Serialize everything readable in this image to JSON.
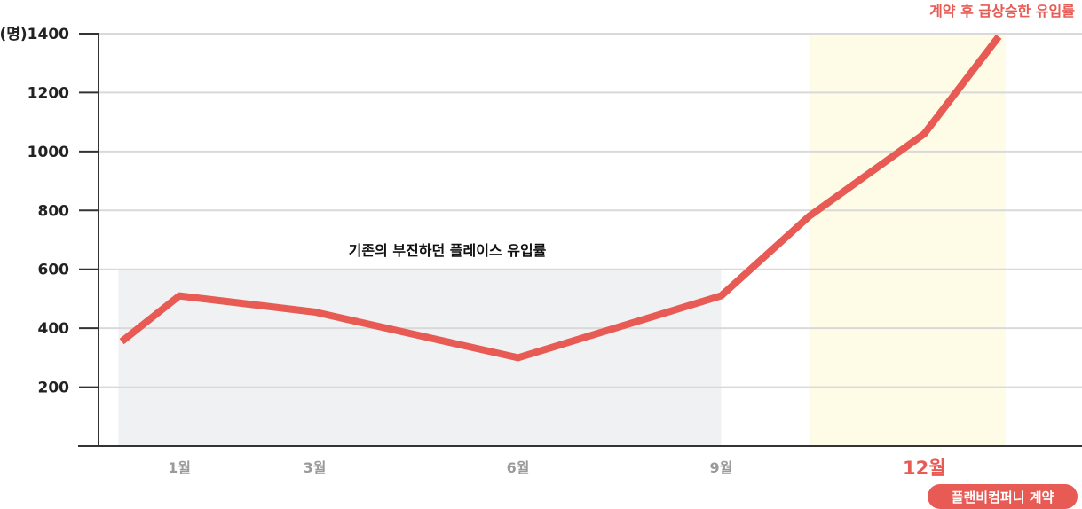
{
  "chart_data": {
    "type": "line",
    "y_unit": "(명)",
    "ylim": [
      0,
      1400
    ],
    "y_ticks": [
      200,
      400,
      600,
      800,
      1000,
      1200,
      1400
    ],
    "x_labels": [
      {
        "label": "1월",
        "month": 1
      },
      {
        "label": "3월",
        "month": 3
      },
      {
        "label": "6월",
        "month": 6
      },
      {
        "label": "9월",
        "month": 9
      },
      {
        "label": "12월",
        "month": 12,
        "highlight": true
      }
    ],
    "series": [
      {
        "color": "#e85a54",
        "points": [
          {
            "x": 0.15,
            "y": 355
          },
          {
            "x": 1,
            "y": 510
          },
          {
            "x": 3,
            "y": 455
          },
          {
            "x": 6,
            "y": 300
          },
          {
            "x": 9,
            "y": 510
          },
          {
            "x": 10.3,
            "y": 780
          },
          {
            "x": 12,
            "y": 1060
          },
          {
            "x": 13.1,
            "y": 1390
          }
        ]
      }
    ],
    "shaded_regions": [
      {
        "x_range": [
          0.1,
          9
        ],
        "y_range": [
          0,
          600
        ],
        "color": "#f0f1f3"
      },
      {
        "x_range": [
          10.3,
          13.2
        ],
        "y_range": [
          0,
          1400
        ],
        "color": "#fefbe7"
      }
    ],
    "annotations": {
      "existing": "기존의 부진하던 플레이스 유입률",
      "surge": "계약 후 급상승한 유입률",
      "badge": "플랜비컴퍼니 계약"
    },
    "grid": true,
    "gridline_color": "#d9d9d9",
    "line_color": "#e85a54",
    "highlight_color": "#e85a54"
  }
}
